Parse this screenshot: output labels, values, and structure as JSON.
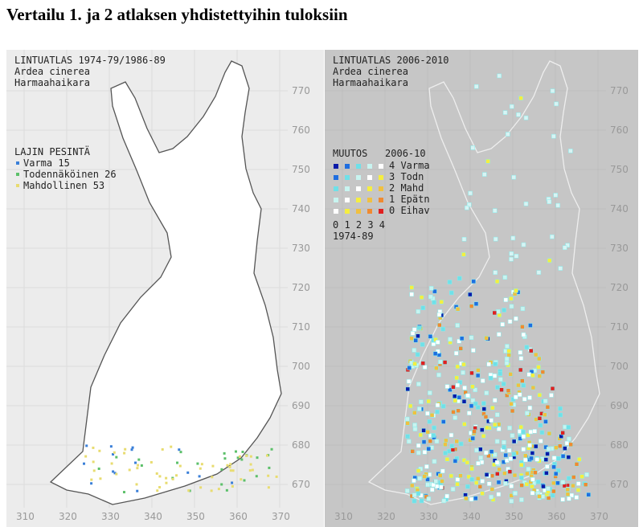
{
  "title": "Vertailu 1. ja 2 atlaksen yhdistettyihin tuloksiin",
  "left": {
    "header": "LINTUATLAS 1974-79/1986-89",
    "latin": "Ardea cinerea",
    "finnish": "Harmaahaikara",
    "legend_title": "LAJIN PESINTÄ",
    "legend": [
      {
        "label": "Varma 15",
        "color": "#3a7fd8"
      },
      {
        "label": "Todennäköinen 26",
        "color": "#5cc06a"
      },
      {
        "label": "Mahdollinen 53",
        "color": "#e8dc70"
      }
    ]
  },
  "right": {
    "header": "LINTUATLAS 2006-2010",
    "latin": "Ardea cinerea",
    "finnish": "Harmaahaikara",
    "legend_title": "MUUTOS   2006-10",
    "rows": [
      {
        "label": "4 Varma",
        "colors": [
          "#0a1aa8",
          "#1f6ee0",
          "#6fe0e8",
          "#c8f4f0",
          "#ffffff"
        ]
      },
      {
        "label": "3 Todn",
        "colors": [
          "#1f6ee0",
          "#6fe0e8",
          "#c8f4f0",
          "#ffffff",
          "#f5ee40"
        ]
      },
      {
        "label": "2 Mahd",
        "colors": [
          "#6fe0e8",
          "#c8f4f0",
          "#ffffff",
          "#f5ee40",
          "#f0c040"
        ]
      },
      {
        "label": "1 Epätn",
        "colors": [
          "#c8f4f0",
          "#ffffff",
          "#f5ee40",
          "#f0c040",
          "#f08a30"
        ]
      },
      {
        "label": "0 Eihav",
        "colors": [
          "#ffffff",
          "#f5ee40",
          "#f0c040",
          "#f08a30",
          "#e02020"
        ]
      }
    ],
    "x_legend": "0 1 2 3 4",
    "x_legend_title": "1974-89"
  },
  "axes": {
    "y": [
      "770",
      "760",
      "750",
      "740",
      "730",
      "720",
      "710",
      "700",
      "690",
      "680",
      "670"
    ],
    "x": [
      "310",
      "320",
      "330",
      "340",
      "350",
      "360",
      "370"
    ]
  }
}
